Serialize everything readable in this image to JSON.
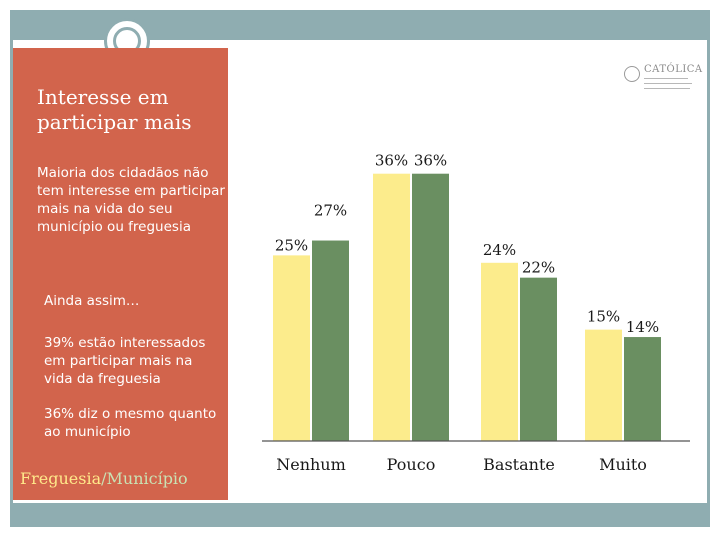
{
  "sidebar": {
    "title": "Interesse em participar mais",
    "text": "Maioria dos cidadãos não tem interesse em participar mais na vida do seu município ou freguesia",
    "still": "Ainda assim…",
    "point1": "39% estão interessados em participar mais na vida da freguesia",
    "point2": "36% diz o mesmo quanto ao município"
  },
  "legend": {
    "a": "Freguesia",
    "sep": "/",
    "b": "Município"
  },
  "logo": {
    "text": "CATÓLICA"
  },
  "colors": {
    "freguesia": "#fcec8c",
    "municipio": "#6a8f61",
    "sidebar": "#d2644c",
    "frame": "#8fadb1"
  },
  "chart_data": {
    "type": "bar",
    "categories": [
      "Nenhum",
      "Pouco",
      "Bastante",
      "Muito"
    ],
    "series": [
      {
        "name": "Freguesia",
        "values": [
          25,
          36,
          24,
          15
        ],
        "labels": [
          "25%",
          "36%",
          "24%",
          "15%"
        ]
      },
      {
        "name": "Município",
        "values": [
          27,
          36,
          22,
          14
        ],
        "labels": [
          "27%",
          "36%",
          "22%",
          "14%"
        ]
      }
    ],
    "title": "",
    "xlabel": "",
    "ylabel": "",
    "ylim": [
      0,
      40
    ],
    "grid": false,
    "legend": "bottom-left"
  }
}
